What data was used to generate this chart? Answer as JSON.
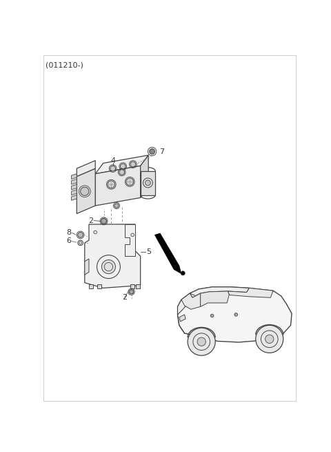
{
  "title": "(011210-)",
  "background_color": "#ffffff",
  "line_color": "#444444",
  "label_color": "#333333",
  "fig_width": 4.8,
  "fig_height": 6.55,
  "dpi": 100,
  "border_color": "#cccccc"
}
